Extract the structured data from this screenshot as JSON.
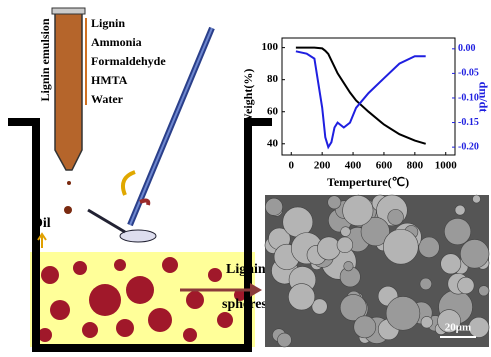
{
  "labels": {
    "emulsion": "Lignin emulsion",
    "ingredients": [
      "Lignin",
      "Ammonia",
      "Formaldehyde",
      "HMTA",
      "Water"
    ],
    "oil": "Oil",
    "product": [
      "Lignin",
      "spheres"
    ],
    "scale_bar": "20μm"
  },
  "chart_data": {
    "type": "line",
    "x_label": "Temperture(℃)",
    "y_label": "Weight(%)",
    "y2_label": "dm/dt",
    "x": [
      30,
      100,
      150,
      200,
      220,
      240,
      260,
      280,
      300,
      340,
      380,
      420,
      500,
      600,
      700,
      800,
      870
    ],
    "series": [
      {
        "color": "#000000",
        "values": [
          100,
          100,
          100,
          99.5,
          98,
          96,
          92,
          88,
          84,
          78,
          72,
          67,
          60,
          52,
          46,
          42,
          40
        ]
      },
      {
        "color": "#1f1fe0",
        "axis": "y2",
        "values": [
          -0.005,
          -0.01,
          -0.02,
          -0.12,
          -0.18,
          -0.2,
          -0.19,
          -0.16,
          -0.15,
          -0.16,
          -0.15,
          -0.12,
          -0.09,
          -0.06,
          -0.03,
          -0.015,
          -0.015
        ]
      }
    ],
    "xlim": [
      -60,
      1060
    ],
    "xticks": [
      0,
      200,
      400,
      600,
      800,
      1000
    ],
    "ylim": [
      33,
      106
    ],
    "yticks": [
      40,
      60,
      80,
      100
    ],
    "y2lim": [
      -0.216,
      0.022
    ],
    "y2ticks": [
      {
        "value": 0,
        "label": "0.00"
      },
      {
        "value": -0.05,
        "label": "-0.05"
      },
      {
        "value": -0.1,
        "label": "-0.10"
      },
      {
        "value": -0.15,
        "label": "-0.15"
      },
      {
        "value": -0.2,
        "label": "-0.20"
      }
    ]
  }
}
